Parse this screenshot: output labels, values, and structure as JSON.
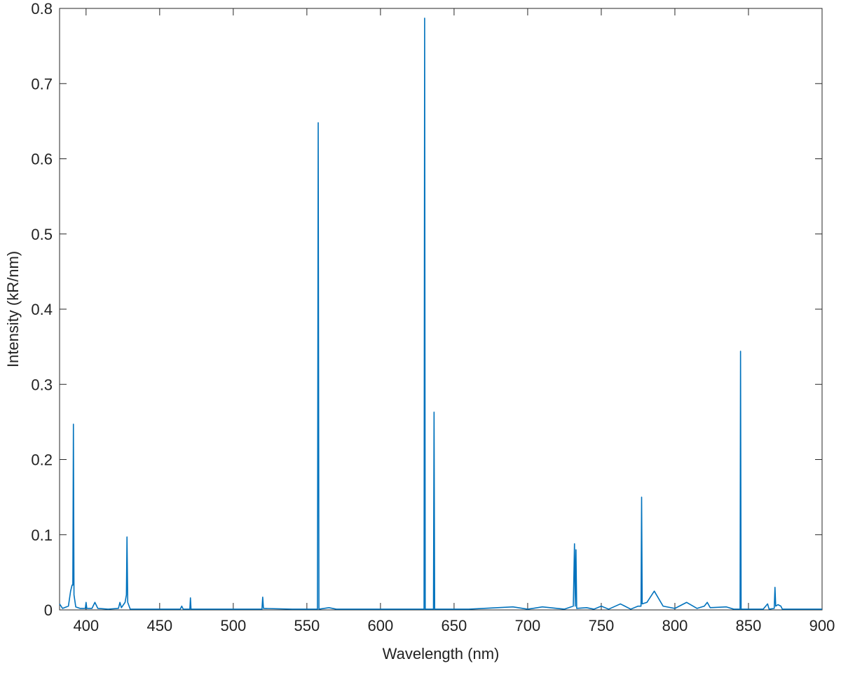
{
  "chart_data": {
    "type": "line",
    "xlabel": "Wavelength (nm)",
    "ylabel": "Intensity (kR/nm)",
    "xlim": [
      382,
      900
    ],
    "ylim": [
      0,
      0.8
    ],
    "xticks": [
      400,
      450,
      500,
      550,
      600,
      650,
      700,
      750,
      800,
      850,
      900
    ],
    "yticks": [
      0,
      0.1,
      0.2,
      0.3,
      0.4,
      0.5,
      0.6,
      0.7,
      0.8
    ],
    "grid": false,
    "series": [
      {
        "color": "#0072bd",
        "x": [
          382,
          384,
          388,
          389.5,
          390.5,
          391,
          391.4,
          391.8,
          393,
          396,
          399.5,
          400,
          400.5,
          404,
          406,
          408,
          415,
          422,
          423,
          424,
          426.5,
          427.4,
          427.8,
          428.3,
          430,
          450,
          464,
          465,
          466,
          470.5,
          470.9,
          471.3,
          500,
          519.5,
          520,
          520.5,
          540,
          557.2,
          557.7,
          558.2,
          565,
          570,
          600,
          629.6,
          630,
          630.4,
          636,
          636.4,
          636.8,
          660,
          690,
          700,
          710,
          725,
          731,
          731.8,
          732.3,
          732.8,
          733.3,
          740,
          745,
          750,
          755,
          763,
          770,
          775,
          777,
          777.4,
          777.8,
          781,
          786,
          792,
          800,
          808,
          815,
          820,
          822,
          824,
          835,
          840,
          844.3,
          844.6,
          845,
          860,
          863,
          864,
          867.5,
          868,
          868.5,
          870,
          872,
          873,
          900
        ],
        "values": [
          0.008,
          0.002,
          0.005,
          0.025,
          0.033,
          0.033,
          0.247,
          0.02,
          0.004,
          0.002,
          0.002,
          0.01,
          0.002,
          0.002,
          0.01,
          0.002,
          0.001,
          0.002,
          0.01,
          0.003,
          0.01,
          0.02,
          0.097,
          0.01,
          0.001,
          0.001,
          0.001,
          0.005,
          0.001,
          0.001,
          0.016,
          0.001,
          0.001,
          0.001,
          0.017,
          0.002,
          0.001,
          0.001,
          0.648,
          0.001,
          0.003,
          0.001,
          0.001,
          0.001,
          0.787,
          0.001,
          0.001,
          0.263,
          0.001,
          0.001,
          0.004,
          0.001,
          0.004,
          0.001,
          0.005,
          0.088,
          0.005,
          0.08,
          0.002,
          0.003,
          0.001,
          0.005,
          0.001,
          0.008,
          0.001,
          0.005,
          0.005,
          0.15,
          0.008,
          0.01,
          0.025,
          0.005,
          0.002,
          0.01,
          0.002,
          0.005,
          0.01,
          0.003,
          0.004,
          0.001,
          0.001,
          0.344,
          0.001,
          0.001,
          0.008,
          0.001,
          0.002,
          0.03,
          0.005,
          0.007,
          0.005,
          0.001,
          0.001
        ]
      }
    ]
  }
}
